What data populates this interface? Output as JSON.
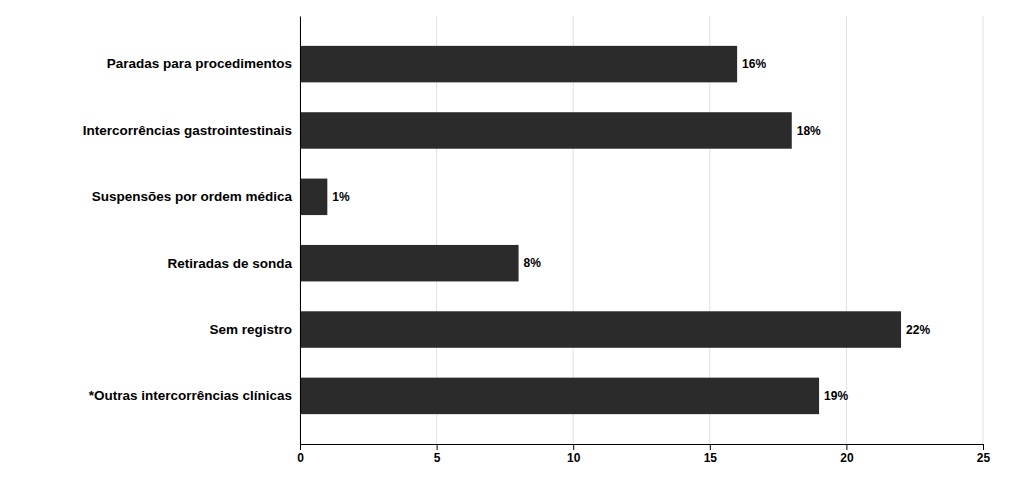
{
  "chart_data": {
    "type": "bar",
    "orientation": "horizontal",
    "categories": [
      "*Outras intercorrências clínicas",
      "Sem registro",
      "Retiradas de sonda",
      "Suspensões por ordem médica",
      "Intercorrências gastrointestinais",
      "Paradas para procedimentos"
    ],
    "values": [
      19,
      22,
      8,
      1,
      18,
      16
    ],
    "value_labels": [
      "19%",
      "22%",
      "8%",
      "1%",
      "18%",
      "16%"
    ],
    "color": "#2b2b2b",
    "xlim": [
      0,
      25
    ],
    "xticks": [
      0,
      5,
      10,
      15,
      20,
      25
    ],
    "grid": true
  }
}
